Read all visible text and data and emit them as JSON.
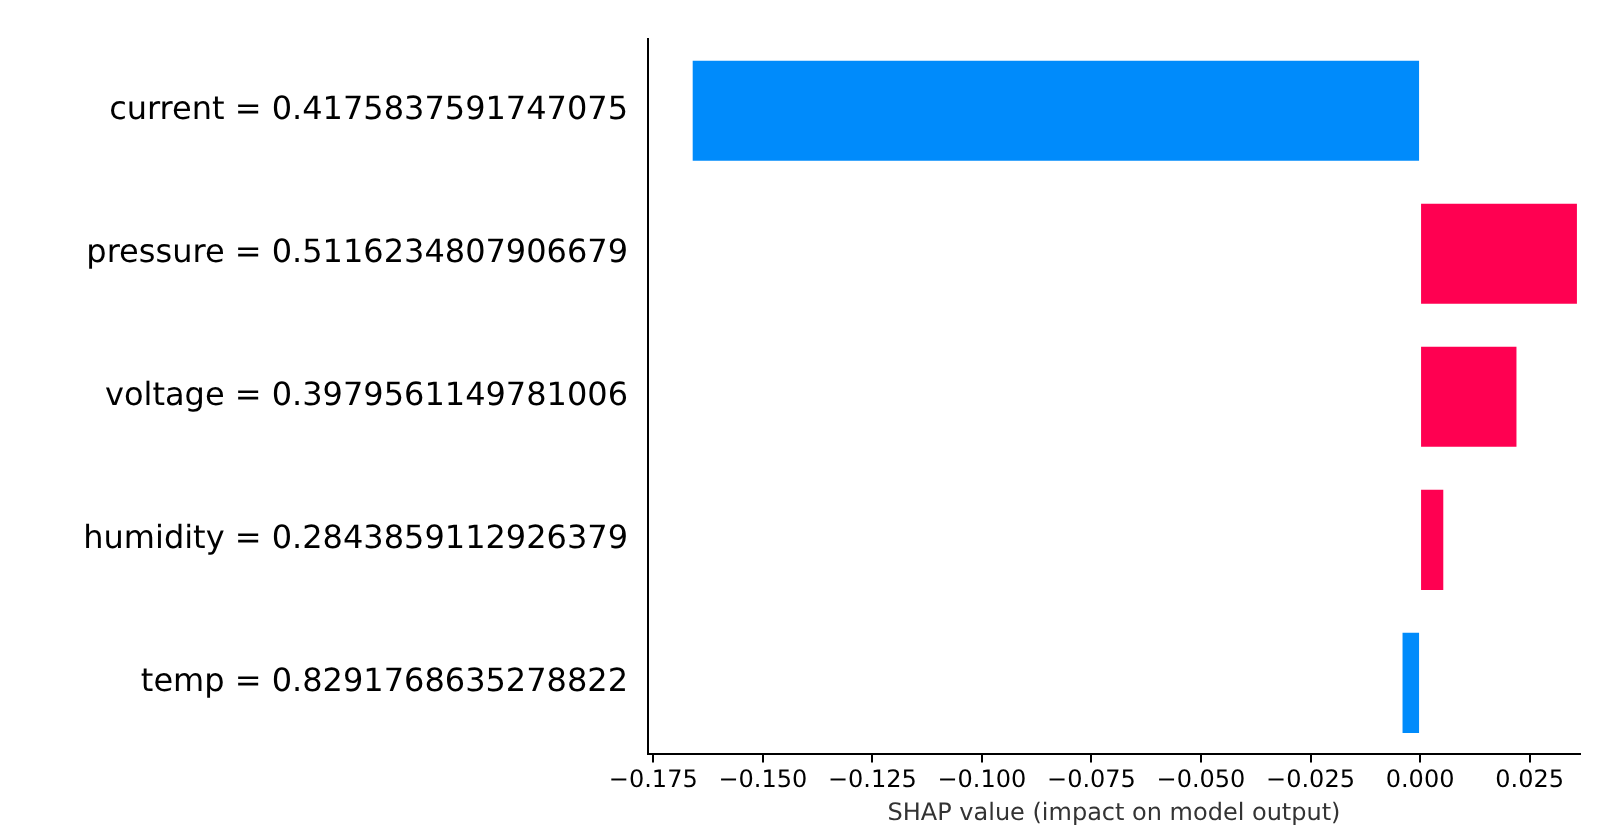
{
  "chart_data": {
    "type": "bar",
    "orientation": "horizontal",
    "xlabel": "SHAP value (impact on model output)",
    "categories": [
      "current = 0.4175837591747075",
      "pressure = 0.5116234807906679",
      "voltage = 0.3979561149781006",
      "humidity = 0.2843859112926379",
      "temp = 0.8291768635278822"
    ],
    "values": [
      -0.166,
      0.0358,
      0.022,
      0.0053,
      -0.004
    ],
    "colors": [
      "#008bfb",
      "#ff0051",
      "#ff0051",
      "#ff0051",
      "#008bfb"
    ],
    "xlim": [
      -0.1762,
      0.0365
    ],
    "xticks": [
      {
        "value": -0.175,
        "label": "−0.175"
      },
      {
        "value": -0.15,
        "label": "−0.150"
      },
      {
        "value": -0.125,
        "label": "−0.125"
      },
      {
        "value": -0.1,
        "label": "−0.100"
      },
      {
        "value": -0.075,
        "label": "−0.075"
      },
      {
        "value": -0.05,
        "label": "−0.050"
      },
      {
        "value": -0.025,
        "label": "−0.025"
      },
      {
        "value": 0,
        "label": "0.000"
      },
      {
        "value": 0.025,
        "label": "0.025"
      }
    ]
  }
}
